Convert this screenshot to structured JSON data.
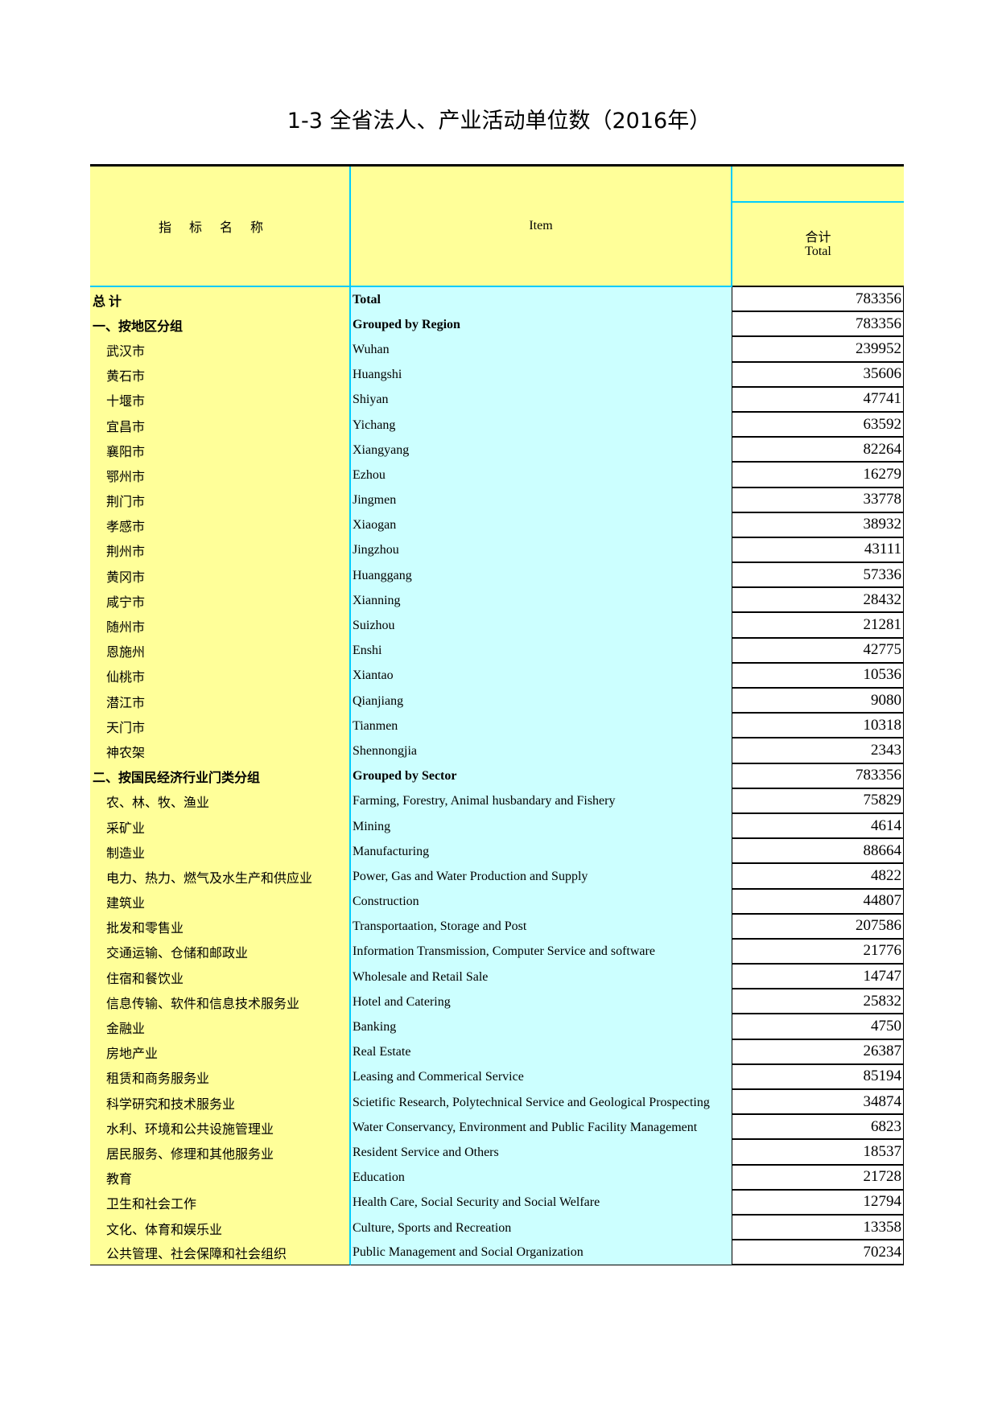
{
  "title": "1-3  全省法人、产业活动单位数（2016年）",
  "header": {
    "col_cn": "指标名称",
    "col_en": "Item",
    "total_cn": "合计",
    "total_en": "Total"
  },
  "colors": {
    "header_bg": "#ffff99",
    "item_bg": "#ccffff",
    "border": "#00ccff"
  },
  "rows": [
    {
      "cn": "总  计",
      "en": "Total",
      "value": "783356",
      "bold": true
    },
    {
      "cn": "一、按地区分组",
      "en": "Grouped by Region",
      "value": "783356",
      "bold": true
    },
    {
      "cn": "武汉市",
      "en": "Wuhan",
      "value": "239952"
    },
    {
      "cn": "黄石市",
      "en": "Huangshi",
      "value": "35606"
    },
    {
      "cn": "十堰市",
      "en": "Shiyan",
      "value": "47741"
    },
    {
      "cn": "宜昌市",
      "en": "Yichang",
      "value": "63592"
    },
    {
      "cn": "襄阳市",
      "en": "Xiangyang",
      "value": "82264"
    },
    {
      "cn": "鄂州市",
      "en": "Ezhou",
      "value": "16279"
    },
    {
      "cn": "荆门市",
      "en": "Jingmen",
      "value": "33778"
    },
    {
      "cn": "孝感市",
      "en": "Xiaogan",
      "value": "38932"
    },
    {
      "cn": "荆州市",
      "en": "Jingzhou",
      "value": "43111"
    },
    {
      "cn": "黄冈市",
      "en": "Huanggang",
      "value": "57336"
    },
    {
      "cn": "咸宁市",
      "en": "Xianning",
      "value": "28432"
    },
    {
      "cn": "随州市",
      "en": "Suizhou",
      "value": "21281"
    },
    {
      "cn": "恩施州",
      "en": "Enshi",
      "value": "42775"
    },
    {
      "cn": "仙桃市",
      "en": "Xiantao",
      "value": "10536"
    },
    {
      "cn": "潜江市",
      "en": "Qianjiang",
      "value": "9080"
    },
    {
      "cn": "天门市",
      "en": "Tianmen",
      "value": "10318"
    },
    {
      "cn": "神农架",
      "en": "Shennongjia",
      "value": "2343"
    },
    {
      "cn": "二、按国民经济行业门类分组",
      "en": "Grouped by Sector",
      "value": "783356",
      "bold": true
    },
    {
      "cn": "农、林、牧、渔业",
      "en": "Farming, Forestry, Animal husbandary and Fishery",
      "value": "75829"
    },
    {
      "cn": "采矿业",
      "en": "Mining",
      "value": "4614"
    },
    {
      "cn": "制造业",
      "en": "Manufacturing",
      "value": "88664"
    },
    {
      "cn": "电力、热力、燃气及水生产和供应业",
      "en": "Power, Gas and Water Production and Supply",
      "value": "4822"
    },
    {
      "cn": "建筑业",
      "en": "Construction",
      "value": "44807"
    },
    {
      "cn": "批发和零售业",
      "en": "Transportaation, Storage and Post",
      "value": "207586"
    },
    {
      "cn": "交通运输、仓储和邮政业",
      "en": "Information Transmission, Computer Service and software",
      "value": "21776"
    },
    {
      "cn": "住宿和餐饮业",
      "en": "Wholesale and Retail Sale",
      "value": "14747"
    },
    {
      "cn": "信息传输、软件和信息技术服务业",
      "en": "Hotel and Catering",
      "value": "25832"
    },
    {
      "cn": "金融业",
      "en": "Banking",
      "value": "4750"
    },
    {
      "cn": "房地产业",
      "en": "Real Estate",
      "value": "26387"
    },
    {
      "cn": "租赁和商务服务业",
      "en": "Leasing and Commerical Service",
      "value": "85194"
    },
    {
      "cn": "科学研究和技术服务业",
      "en": "Scietific Research, Polytechnical Service and Geological Prospecting",
      "value": "34874"
    },
    {
      "cn": "水利、环境和公共设施管理业",
      "en": "Water Conservancy, Environment and Public Facility Management",
      "value": "6823"
    },
    {
      "cn": "居民服务、修理和其他服务业",
      "en": "Resident Service and Others",
      "value": "18537"
    },
    {
      "cn": "教育",
      "en": "Education",
      "value": "21728"
    },
    {
      "cn": "卫生和社会工作",
      "en": "Health Care, Social Security and Social Welfare",
      "value": "12794"
    },
    {
      "cn": "文化、体育和娱乐业",
      "en": "Culture, Sports and Recreation",
      "value": "13358"
    },
    {
      "cn": "公共管理、社会保障和社会组织",
      "en": "Public Management and Social Organization",
      "value": "70234"
    }
  ]
}
